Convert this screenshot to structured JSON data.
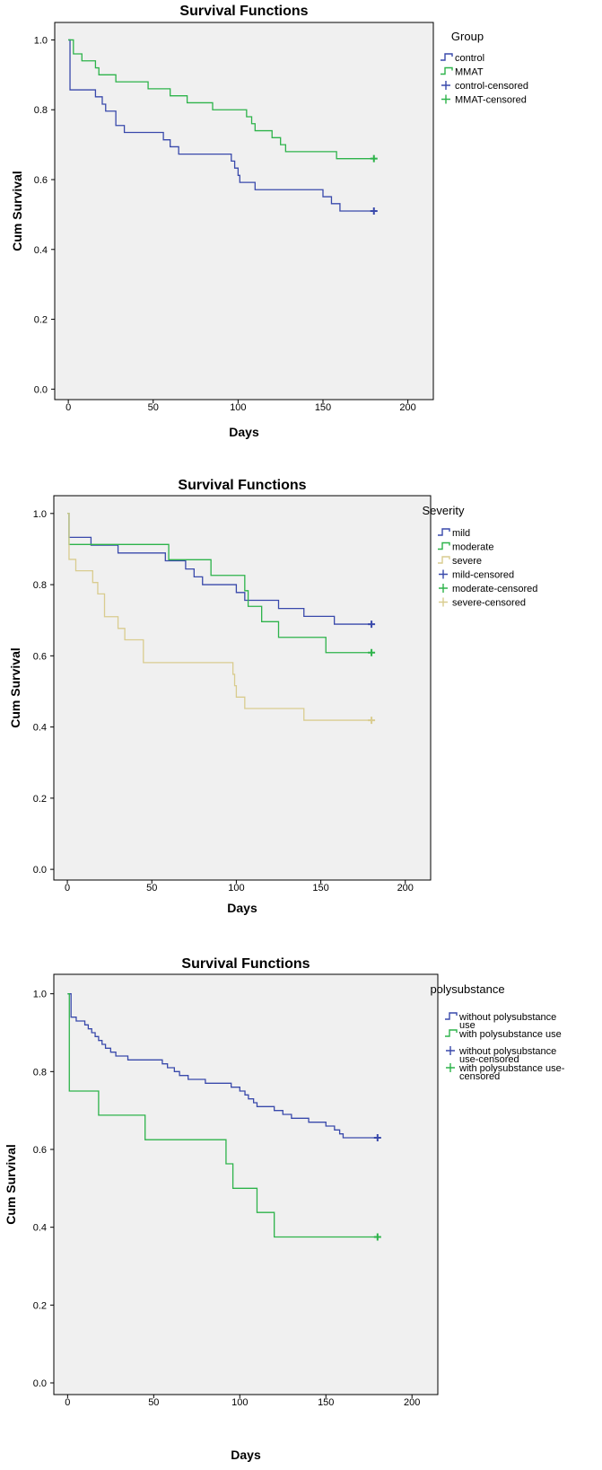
{
  "chart_data": [
    {
      "type": "line",
      "title": "Survival Functions",
      "xlabel": "Days",
      "ylabel": "Cum Survival",
      "xlim": [
        -8,
        215
      ],
      "ylim": [
        -0.03,
        1.05
      ],
      "xticks": [
        "0",
        "50",
        "100",
        "150",
        "200"
      ],
      "yticks": [
        "0.0",
        "0.2",
        "0.4",
        "0.6",
        "0.8",
        "1.0"
      ],
      "legend_title": "Group",
      "legend": [
        {
          "label": "control",
          "kind": "line",
          "color": "#3949ab"
        },
        {
          "label": "MMAT",
          "kind": "line",
          "color": "#2db34a"
        },
        {
          "label": "control-censored",
          "kind": "plus",
          "color": "#3949ab"
        },
        {
          "label": "MMAT-censored",
          "kind": "plus",
          "color": "#2db34a"
        }
      ],
      "series": [
        {
          "name": "control",
          "color": "#3949ab",
          "x": [
            0,
            1,
            16,
            20,
            22,
            28,
            33,
            56,
            60,
            65,
            70,
            96,
            98,
            100,
            101,
            110,
            150,
            155,
            160,
            180
          ],
          "y": [
            1.0,
            0.857,
            0.837,
            0.816,
            0.796,
            0.755,
            0.735,
            0.714,
            0.694,
            0.673,
            0.673,
            0.653,
            0.633,
            0.612,
            0.592,
            0.571,
            0.551,
            0.531,
            0.51,
            0.51
          ],
          "censored": [
            {
              "x": 180,
              "y": 0.51
            }
          ]
        },
        {
          "name": "MMAT",
          "color": "#2db34a",
          "x": [
            0,
            1,
            3,
            8,
            16,
            18,
            28,
            35,
            47,
            60,
            70,
            85,
            100,
            105,
            108,
            110,
            120,
            125,
            128,
            158,
            180
          ],
          "y": [
            1.0,
            1.0,
            0.96,
            0.94,
            0.92,
            0.9,
            0.88,
            0.88,
            0.86,
            0.84,
            0.82,
            0.8,
            0.8,
            0.78,
            0.76,
            0.74,
            0.72,
            0.7,
            0.68,
            0.66,
            0.66
          ],
          "censored": [
            {
              "x": 180,
              "y": 0.66
            }
          ]
        }
      ]
    },
    {
      "type": "line",
      "title": "Survival Functions",
      "xlabel": "Days",
      "ylabel": "Cum Survival",
      "xlim": [
        -8,
        215
      ],
      "ylim": [
        -0.03,
        1.05
      ],
      "xticks": [
        "0",
        "50",
        "100",
        "150",
        "200"
      ],
      "yticks": [
        "0.0",
        "0.2",
        "0.4",
        "0.6",
        "0.8",
        "1.0"
      ],
      "legend_title": "Severity",
      "legend": [
        {
          "label": "mild",
          "kind": "line",
          "color": "#3949ab"
        },
        {
          "label": "moderate",
          "kind": "line",
          "color": "#2db34a"
        },
        {
          "label": "severe",
          "kind": "line",
          "color": "#d9cc8f"
        },
        {
          "label": "mild-censored",
          "kind": "plus",
          "color": "#3949ab"
        },
        {
          "label": "moderate-censored",
          "kind": "plus",
          "color": "#2db34a"
        },
        {
          "label": "severe-censored",
          "kind": "plus",
          "color": "#d9cc8f"
        }
      ],
      "series": [
        {
          "name": "mild",
          "color": "#3949ab",
          "x": [
            0,
            1,
            14,
            30,
            58,
            70,
            75,
            80,
            85,
            100,
            105,
            125,
            140,
            158,
            180
          ],
          "y": [
            1.0,
            0.933,
            0.911,
            0.889,
            0.867,
            0.844,
            0.822,
            0.8,
            0.8,
            0.778,
            0.756,
            0.733,
            0.711,
            0.689,
            0.689
          ],
          "censored": [
            {
              "x": 180,
              "y": 0.689
            }
          ]
        },
        {
          "name": "moderate",
          "color": "#2db34a",
          "x": [
            0,
            1,
            60,
            85,
            105,
            107,
            115,
            125,
            153,
            180
          ],
          "y": [
            1.0,
            0.913,
            0.87,
            0.826,
            0.783,
            0.739,
            0.696,
            0.652,
            0.609,
            0.609
          ],
          "censored": [
            {
              "x": 180,
              "y": 0.609
            }
          ]
        },
        {
          "name": "severe",
          "color": "#d9cc8f",
          "x": [
            0,
            1,
            5,
            15,
            18,
            22,
            30,
            34,
            45,
            98,
            99,
            100,
            105,
            140,
            180
          ],
          "y": [
            1.0,
            0.871,
            0.839,
            0.806,
            0.774,
            0.71,
            0.677,
            0.645,
            0.581,
            0.548,
            0.516,
            0.484,
            0.452,
            0.419,
            0.419
          ],
          "censored": [
            {
              "x": 180,
              "y": 0.419
            }
          ]
        }
      ]
    },
    {
      "type": "line",
      "title": "Survival Functions",
      "xlabel": "Days",
      "ylabel": "Cum Survival",
      "xlim": [
        -8,
        215
      ],
      "ylim": [
        -0.03,
        1.05
      ],
      "xticks": [
        "0",
        "50",
        "100",
        "150",
        "200"
      ],
      "yticks": [
        "0.0",
        "0.2",
        "0.4",
        "0.6",
        "0.8",
        "1.0"
      ],
      "legend_title": "polysubstance",
      "legend": [
        {
          "label": [
            "without polysubstance",
            "use"
          ],
          "kind": "line",
          "color": "#3949ab"
        },
        {
          "label": [
            "with polysubstance use"
          ],
          "kind": "line",
          "color": "#2db34a"
        },
        {
          "label": [
            "without polysubstance",
            "use-censored"
          ],
          "kind": "plus",
          "color": "#3949ab"
        },
        {
          "label": [
            "with polysubstance use-",
            "censored"
          ],
          "kind": "plus",
          "color": "#2db34a"
        }
      ],
      "series": [
        {
          "name": "without polysubstance use",
          "color": "#3949ab",
          "x": [
            0,
            2,
            5,
            10,
            12,
            14,
            16,
            18,
            20,
            22,
            25,
            28,
            30,
            35,
            55,
            58,
            62,
            65,
            70,
            80,
            90,
            95,
            100,
            103,
            105,
            108,
            110,
            120,
            125,
            130,
            140,
            150,
            155,
            158,
            160,
            180
          ],
          "y": [
            1.0,
            0.94,
            0.93,
            0.92,
            0.91,
            0.9,
            0.89,
            0.88,
            0.87,
            0.86,
            0.85,
            0.84,
            0.84,
            0.83,
            0.82,
            0.81,
            0.8,
            0.79,
            0.78,
            0.77,
            0.77,
            0.76,
            0.75,
            0.74,
            0.73,
            0.72,
            0.71,
            0.7,
            0.69,
            0.68,
            0.67,
            0.66,
            0.65,
            0.64,
            0.63,
            0.63
          ],
          "censored": [
            {
              "x": 180,
              "y": 0.63
            }
          ]
        },
        {
          "name": "with polysubstance use",
          "color": "#2db34a",
          "x": [
            0,
            1,
            18,
            45,
            92,
            96,
            100,
            110,
            120,
            180
          ],
          "y": [
            1.0,
            0.75,
            0.688,
            0.625,
            0.563,
            0.5,
            0.5,
            0.438,
            0.375,
            0.375
          ],
          "censored": [
            {
              "x": 180,
              "y": 0.375
            }
          ]
        }
      ]
    }
  ]
}
